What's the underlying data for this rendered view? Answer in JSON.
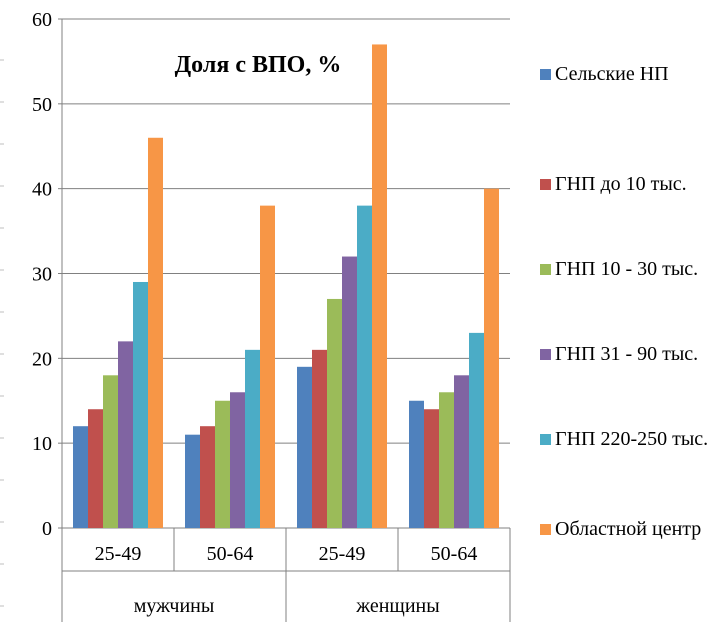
{
  "chart_data": {
    "type": "bar",
    "title": "Доля с ВПО, %",
    "xlabel": "",
    "ylabel": "",
    "ylim": [
      0,
      60
    ],
    "y_ticks": [
      0,
      10,
      20,
      30,
      40,
      50,
      60
    ],
    "grid": true,
    "legend_position": "right",
    "groups": [
      {
        "label": "мужчины",
        "categories": [
          "25-49",
          "50-64"
        ]
      },
      {
        "label": "женщины",
        "categories": [
          "25-49",
          "50-64"
        ]
      }
    ],
    "categories": [
      "25-49",
      "50-64",
      "25-49",
      "50-64"
    ],
    "series": [
      {
        "name": "Сельские НП",
        "color": "#4F81BD",
        "values": [
          12,
          11,
          19,
          15
        ]
      },
      {
        "name": "ГНП до 10 тыс.",
        "color": "#C0504D",
        "values": [
          14,
          12,
          21,
          14
        ]
      },
      {
        "name": "ГНП 10 - 30 тыс.",
        "color": "#9BBB59",
        "values": [
          18,
          15,
          27,
          16
        ]
      },
      {
        "name": "ГНП 31 - 90 тыс.",
        "color": "#8064A2",
        "values": [
          22,
          16,
          32,
          18
        ]
      },
      {
        "name": "ГНП 220-250 тыс.",
        "color": "#4BACC6",
        "values": [
          29,
          21,
          38,
          23
        ]
      },
      {
        "name": "Областной центр",
        "color": "#F79646",
        "values": [
          46,
          38,
          57,
          40
        ]
      }
    ]
  }
}
